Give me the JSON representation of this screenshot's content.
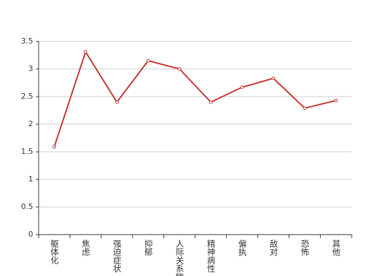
{
  "chart_data": {
    "type": "line",
    "categories": [
      "躯体化",
      "焦虑",
      "强迫症状",
      "抑郁",
      "人际关系敏感",
      "精神病性",
      "偏执",
      "敌对",
      "恐怖",
      "其他"
    ],
    "values": [
      1.59,
      3.31,
      2.4,
      3.15,
      3.0,
      2.4,
      2.67,
      2.83,
      2.29,
      2.43
    ],
    "color": "#c23531",
    "ylim": [
      0,
      3.5
    ],
    "yticks": [
      0,
      0.5,
      1,
      1.5,
      2,
      2.5,
      3,
      3.5
    ],
    "grid": true
  }
}
